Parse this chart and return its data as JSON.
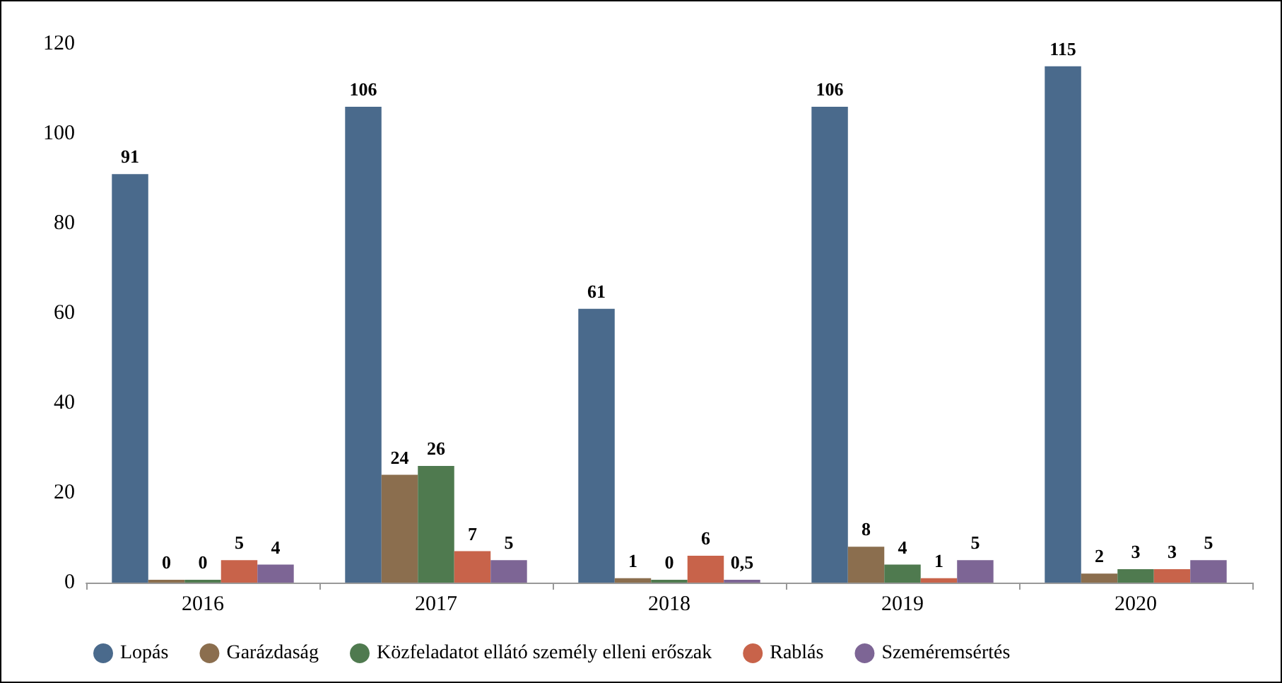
{
  "chart_data": {
    "type": "bar",
    "categories": [
      "2016",
      "2017",
      "2018",
      "2019",
      "2020"
    ],
    "series": [
      {
        "name": "Lopás",
        "color": "#4a6a8c",
        "values": [
          91,
          106,
          61,
          106,
          115
        ],
        "value_labels": [
          "91",
          "106",
          "61",
          "106",
          "115"
        ]
      },
      {
        "name": "Garázdaság",
        "color": "#8b6e4e",
        "values": [
          0,
          24,
          1,
          8,
          2
        ],
        "value_labels": [
          "0",
          "24",
          "1",
          "8",
          "2"
        ]
      },
      {
        "name": "Közfeladatot ellátó személy elleni erőszak",
        "color": "#4f7a4f",
        "values": [
          0,
          26,
          0,
          4,
          3
        ],
        "value_labels": [
          "0",
          "26",
          "0",
          "4",
          "3"
        ]
      },
      {
        "name": "Rablás",
        "color": "#c8634a",
        "values": [
          5,
          7,
          6,
          1,
          3
        ],
        "value_labels": [
          "5",
          "7",
          "6",
          "1",
          "3"
        ]
      },
      {
        "name": "Szeméremsértés",
        "color": "#7d6595",
        "values": [
          4,
          5,
          0.5,
          5,
          5
        ],
        "value_labels": [
          "4",
          "5",
          "0,5",
          "5",
          "5"
        ]
      }
    ],
    "ylim": [
      0,
      120
    ],
    "yticks": [
      0,
      20,
      40,
      60,
      80,
      100,
      120
    ],
    "grid": false,
    "legend": "bottom"
  }
}
